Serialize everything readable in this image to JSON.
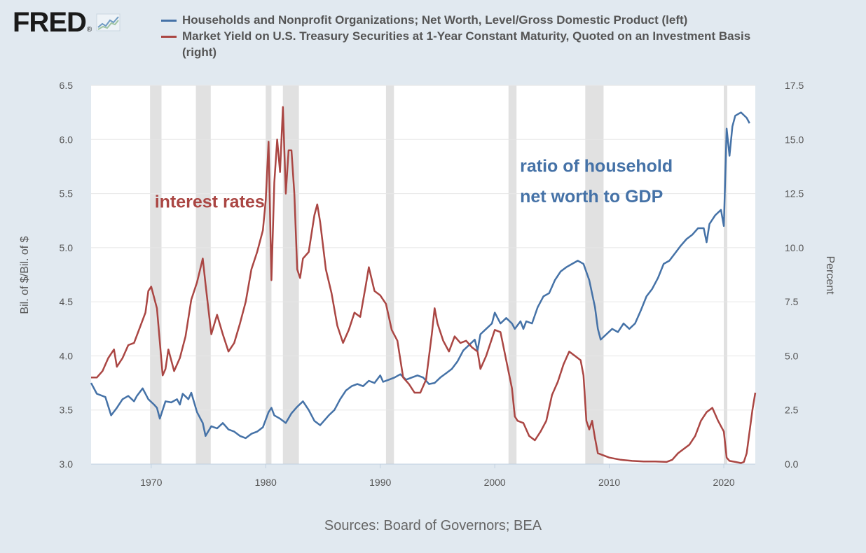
{
  "header": {
    "logo_text": "FRED",
    "logo_mark": "®"
  },
  "sources": "Sources: Board of Governors; BEA",
  "colors": {
    "blue": "#4572a7",
    "red": "#aa4643",
    "recession": "#e1e1e1",
    "grid": "#e6e6e6",
    "axis_text": "#555555"
  },
  "chart_data": {
    "type": "line",
    "title": "",
    "xlabel": "",
    "ylabel": "Bil. of $/Bil. of $",
    "y2label": "Percent",
    "xlim": [
      1964.75,
      2022.75
    ],
    "ylim": [
      3.0,
      6.5
    ],
    "y2lim": [
      0.0,
      17.5
    ],
    "x_ticks": [
      1970,
      1980,
      1990,
      2000,
      2010,
      2020
    ],
    "y_ticks": [
      "3.0",
      "3.5",
      "4.0",
      "4.5",
      "5.0",
      "5.5",
      "6.0",
      "6.5"
    ],
    "y2_ticks": [
      "0.0",
      "2.5",
      "5.0",
      "7.5",
      "10.0",
      "12.5",
      "15.0",
      "17.5"
    ],
    "recessions": [
      [
        1969.9,
        1970.9
      ],
      [
        1973.9,
        1975.2
      ],
      [
        1980.0,
        1980.5
      ],
      [
        1981.5,
        1982.9
      ],
      [
        1990.5,
        1991.2
      ],
      [
        2001.2,
        2001.9
      ],
      [
        2007.9,
        2009.5
      ],
      [
        2020.0,
        2020.3
      ]
    ],
    "annotations": [
      {
        "text": "interest rates",
        "color": "red",
        "x": 1970.3,
        "y2": 11.85
      },
      {
        "text": "ratio of household",
        "color": "blue",
        "x": 2002.2,
        "y": 5.7
      },
      {
        "text": "net worth to GDP",
        "color": "blue",
        "x": 2002.2,
        "y": 5.42
      }
    ],
    "series": [
      {
        "name": "Households and Nonprofit Organizations; Net Worth, Level/Gross Domestic Product (left)",
        "axis": "left",
        "color": "blue",
        "x": [
          1964.75,
          1965.25,
          1966.0,
          1966.5,
          1967.0,
          1967.5,
          1968.0,
          1968.5,
          1968.75,
          1969.25,
          1969.75,
          1970.25,
          1970.5,
          1970.75,
          1971.25,
          1971.75,
          1972.25,
          1972.5,
          1972.75,
          1973.25,
          1973.5,
          1974.0,
          1974.5,
          1974.75,
          1975.25,
          1975.75,
          1976.25,
          1976.75,
          1977.25,
          1977.75,
          1978.25,
          1978.75,
          1979.25,
          1979.75,
          1980.25,
          1980.5,
          1980.75,
          1981.25,
          1981.75,
          1982.25,
          1982.75,
          1983.25,
          1983.75,
          1984.25,
          1984.75,
          1985.5,
          1986.0,
          1986.5,
          1987.0,
          1987.5,
          1988.0,
          1988.5,
          1989.0,
          1989.5,
          1990.0,
          1990.25,
          1990.75,
          1991.25,
          1991.75,
          1992.25,
          1992.75,
          1993.25,
          1993.75,
          1994.25,
          1994.75,
          1995.25,
          1995.75,
          1996.25,
          1996.75,
          1997.25,
          1997.75,
          1998.25,
          1998.5,
          1998.75,
          1999.25,
          1999.75,
          2000.0,
          2000.5,
          2001.0,
          2001.5,
          2001.75,
          2002.25,
          2002.5,
          2002.75,
          2003.25,
          2003.75,
          2004.25,
          2004.75,
          2005.25,
          2005.75,
          2006.25,
          2006.75,
          2007.25,
          2007.75,
          2008.25,
          2008.75,
          2009.0,
          2009.25,
          2009.75,
          2010.25,
          2010.75,
          2011.25,
          2011.75,
          2012.25,
          2012.75,
          2013.25,
          2013.75,
          2014.25,
          2014.75,
          2015.25,
          2015.75,
          2016.25,
          2016.75,
          2017.25,
          2017.75,
          2018.25,
          2018.5,
          2018.75,
          2019.25,
          2019.75,
          2020.0,
          2020.25,
          2020.5,
          2020.75,
          2021.0,
          2021.5,
          2022.0,
          2022.25
        ],
        "values": [
          3.75,
          3.65,
          3.62,
          3.45,
          3.52,
          3.6,
          3.63,
          3.58,
          3.63,
          3.7,
          3.6,
          3.55,
          3.52,
          3.42,
          3.58,
          3.57,
          3.6,
          3.55,
          3.65,
          3.6,
          3.66,
          3.48,
          3.38,
          3.26,
          3.35,
          3.33,
          3.38,
          3.32,
          3.3,
          3.26,
          3.24,
          3.28,
          3.3,
          3.34,
          3.48,
          3.52,
          3.45,
          3.42,
          3.38,
          3.47,
          3.53,
          3.58,
          3.5,
          3.4,
          3.36,
          3.45,
          3.5,
          3.6,
          3.68,
          3.72,
          3.74,
          3.72,
          3.77,
          3.75,
          3.82,
          3.76,
          3.78,
          3.8,
          3.83,
          3.78,
          3.8,
          3.82,
          3.8,
          3.74,
          3.75,
          3.8,
          3.84,
          3.88,
          3.95,
          4.05,
          4.1,
          4.15,
          4.05,
          4.2,
          4.25,
          4.3,
          4.4,
          4.3,
          4.35,
          4.3,
          4.25,
          4.32,
          4.25,
          4.32,
          4.3,
          4.45,
          4.55,
          4.58,
          4.7,
          4.78,
          4.82,
          4.85,
          4.88,
          4.85,
          4.7,
          4.45,
          4.25,
          4.15,
          4.2,
          4.25,
          4.22,
          4.3,
          4.25,
          4.3,
          4.42,
          4.55,
          4.62,
          4.72,
          4.85,
          4.88,
          4.95,
          5.02,
          5.08,
          5.12,
          5.18,
          5.18,
          5.05,
          5.22,
          5.3,
          5.35,
          5.2,
          6.1,
          5.85,
          6.12,
          6.22,
          6.25,
          6.2,
          6.15
        ],
        "cx": [
          0.0,
          0.007,
          0.018,
          0.025,
          0.032,
          0.039,
          0.046,
          0.053,
          0.056,
          0.063,
          0.07,
          0.077,
          0.081,
          0.084,
          0.091,
          0.098,
          0.105,
          0.109,
          0.112,
          0.119,
          0.123,
          0.13,
          0.137,
          0.14,
          0.147,
          0.154,
          0.161,
          0.168,
          0.175,
          0.182,
          0.189,
          0.196,
          0.203,
          0.21,
          0.217,
          0.221,
          0.224,
          0.231,
          0.238,
          0.245,
          0.252,
          0.259,
          0.266,
          0.273,
          0.28,
          0.291,
          0.298,
          0.305,
          0.312,
          0.319,
          0.326,
          0.333,
          0.34,
          0.347,
          0.354,
          0.358,
          0.365,
          0.372,
          0.379,
          0.386,
          0.393,
          0.4,
          0.407,
          0.414,
          0.421,
          0.428,
          0.435,
          0.442,
          0.449,
          0.456,
          0.463,
          0.47,
          0.473,
          0.477,
          0.484,
          0.491,
          0.494,
          0.501,
          0.508,
          0.515,
          0.519,
          0.526,
          0.529,
          0.533,
          0.54,
          0.547,
          0.554,
          0.561,
          0.568,
          0.575,
          0.582,
          0.589,
          0.596,
          0.603,
          0.61,
          0.617,
          0.621,
          0.624,
          0.631,
          0.638,
          0.645,
          0.652,
          0.659,
          0.666,
          0.673,
          0.68,
          0.687,
          0.694,
          0.701,
          0.708,
          0.715,
          0.722,
          0.729,
          0.736,
          0.743,
          0.75,
          0.754,
          0.757,
          0.764,
          0.771,
          0.775,
          0.778,
          0.782,
          0.785,
          0.789,
          0.796,
          0.803,
          0.806
        ]
      },
      {
        "name": "Market Yield on U.S. Treasury Securities at 1-Year Constant Maturity, Quoted on an Investment Basis (right)",
        "axis": "right",
        "color": "red",
        "x": [
          1964.75,
          1965.25,
          1965.75,
          1966.25,
          1966.75,
          1967.0,
          1967.5,
          1968.0,
          1968.5,
          1969.0,
          1969.5,
          1969.75,
          1970.0,
          1970.5,
          1971.0,
          1971.25,
          1971.5,
          1972.0,
          1972.5,
          1973.0,
          1973.5,
          1974.0,
          1974.5,
          1974.75,
          1975.25,
          1975.75,
          1976.25,
          1976.75,
          1977.25,
          1977.75,
          1978.25,
          1978.75,
          1979.25,
          1979.75,
          1980.0,
          1980.25,
          1980.5,
          1980.75,
          1981.0,
          1981.25,
          1981.5,
          1981.75,
          1982.0,
          1982.25,
          1982.5,
          1982.75,
          1983.0,
          1983.25,
          1983.75,
          1984.25,
          1984.5,
          1984.75,
          1985.25,
          1985.75,
          1986.25,
          1986.75,
          1987.25,
          1987.75,
          1988.25,
          1988.75,
          1989.0,
          1989.5,
          1990.0,
          1990.5,
          1991.0,
          1991.5,
          1992.0,
          1992.5,
          1993.0,
          1993.5,
          1994.0,
          1994.5,
          1994.75,
          1995.0,
          1995.5,
          1996.0,
          1996.5,
          1997.0,
          1997.5,
          1998.0,
          1998.5,
          1998.75,
          1999.25,
          1999.75,
          2000.0,
          2000.5,
          2001.0,
          2001.5,
          2001.75,
          2002.0,
          2002.5,
          2003.0,
          2003.5,
          2004.0,
          2004.5,
          2005.0,
          2005.5,
          2006.0,
          2006.5,
          2007.0,
          2007.5,
          2007.75,
          2008.0,
          2008.25,
          2008.5,
          2008.75,
          2009.0,
          2009.5,
          2010.0,
          2011.0,
          2012.0,
          2013.0,
          2014.0,
          2015.0,
          2015.5,
          2016.0,
          2016.5,
          2017.0,
          2017.5,
          2018.0,
          2018.5,
          2019.0,
          2019.5,
          2020.0,
          2020.25,
          2020.5,
          2021.0,
          2021.5,
          2021.75,
          2022.0,
          2022.25,
          2022.5,
          2022.75
        ],
        "values": [
          4.0,
          4.0,
          4.3,
          4.9,
          5.3,
          4.5,
          4.9,
          5.5,
          5.6,
          6.3,
          7.0,
          8.0,
          8.2,
          7.2,
          4.1,
          4.4,
          5.3,
          4.3,
          4.9,
          5.9,
          7.6,
          8.4,
          9.5,
          8.3,
          6.0,
          6.9,
          6.0,
          5.2,
          5.6,
          6.5,
          7.5,
          9.0,
          9.8,
          10.8,
          12.2,
          14.9,
          8.5,
          13.0,
          15.0,
          13.5,
          16.5,
          12.5,
          14.5,
          14.5,
          12.5,
          9.0,
          8.6,
          9.5,
          9.8,
          11.5,
          12.0,
          11.2,
          9.0,
          7.9,
          6.4,
          5.6,
          6.2,
          7.0,
          6.8,
          8.3,
          9.1,
          8.0,
          7.8,
          7.4,
          6.2,
          5.7,
          4.0,
          3.7,
          3.3,
          3.3,
          3.9,
          6.0,
          7.2,
          6.5,
          5.7,
          5.2,
          5.9,
          5.6,
          5.7,
          5.4,
          5.2,
          4.4,
          5.0,
          5.8,
          6.2,
          6.1,
          4.8,
          3.5,
          2.2,
          2.0,
          1.9,
          1.3,
          1.1,
          1.5,
          2.0,
          3.2,
          3.8,
          4.6,
          5.2,
          5.0,
          4.8,
          4.1,
          2.0,
          1.6,
          2.0,
          1.2,
          0.5,
          0.4,
          0.3,
          0.2,
          0.15,
          0.12,
          0.12,
          0.1,
          0.2,
          0.5,
          0.7,
          0.9,
          1.3,
          2.0,
          2.4,
          2.6,
          2.0,
          1.5,
          0.3,
          0.15,
          0.1,
          0.05,
          0.1,
          0.5,
          1.5,
          2.5,
          3.3
        ],
        "cx": [
          0.0,
          0.007,
          0.014,
          0.021,
          0.028,
          0.032,
          0.039,
          0.046,
          0.053,
          0.06,
          0.067,
          0.07,
          0.074,
          0.081,
          0.088,
          0.091,
          0.095,
          0.102,
          0.109,
          0.116,
          0.123,
          0.13,
          0.137,
          0.14,
          0.147,
          0.154,
          0.161,
          0.168,
          0.175,
          0.182,
          0.189,
          0.196,
          0.203,
          0.21,
          0.214,
          0.217,
          0.221,
          0.224,
          0.228,
          0.231,
          0.235,
          0.238,
          0.242,
          0.245,
          0.249,
          0.252,
          0.256,
          0.259,
          0.266,
          0.273,
          0.277,
          0.28,
          0.287,
          0.294,
          0.301,
          0.308,
          0.315,
          0.322,
          0.329,
          0.336,
          0.34,
          0.347,
          0.354,
          0.361,
          0.368,
          0.375,
          0.382,
          0.389,
          0.396,
          0.403,
          0.41,
          0.417,
          0.421,
          0.424,
          0.431,
          0.438,
          0.445,
          0.452,
          0.459,
          0.466,
          0.473,
          0.477,
          0.484,
          0.491,
          0.494,
          0.501,
          0.508,
          0.515,
          0.519,
          0.522,
          0.529,
          0.536,
          0.543,
          0.55,
          0.557,
          0.564,
          0.571,
          0.578,
          0.585,
          0.592,
          0.599,
          0.603,
          0.606,
          0.61,
          0.613,
          0.617,
          0.62,
          0.627,
          0.634,
          0.648,
          0.662,
          0.676,
          0.69,
          0.704,
          0.711,
          0.718,
          0.725,
          0.732,
          0.739,
          0.746,
          0.753,
          0.76,
          0.767,
          0.774,
          0.778,
          0.782,
          0.789,
          0.796,
          0.799,
          0.803,
          0.806,
          0.81,
          0.813
        ]
      }
    ]
  }
}
